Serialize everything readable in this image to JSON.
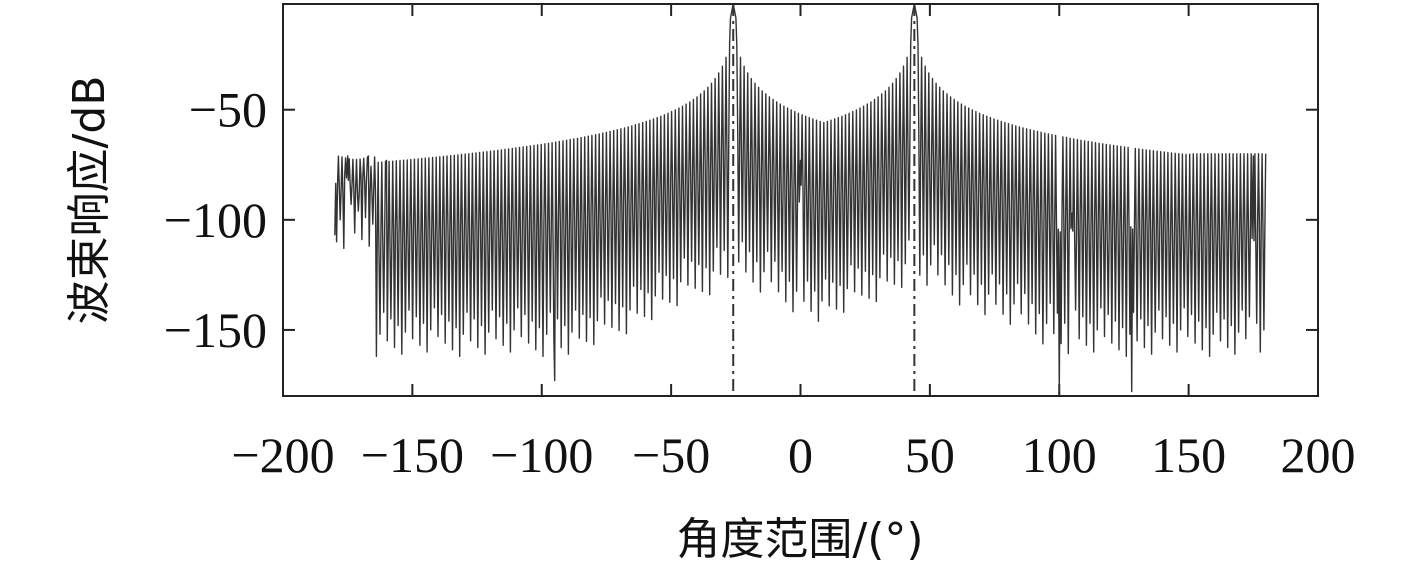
{
  "chart_data": {
    "type": "line",
    "title": "",
    "xlabel": "角度范围/(°)",
    "ylabel": "波束响应/dB",
    "xlim": [
      -200,
      200
    ],
    "ylim": [
      -180,
      -2
    ],
    "xticks": [
      -200,
      -150,
      -100,
      -50,
      0,
      50,
      100,
      150,
      200
    ],
    "yticks": [
      -50,
      -100,
      -150
    ],
    "x_tick_labels": [
      "−200",
      "−150",
      "−100",
      "−50",
      "0",
      "50",
      "100",
      "150",
      "200"
    ],
    "y_tick_labels": [
      "−50",
      "−100",
      "−150"
    ],
    "grid": false,
    "legend": "none",
    "x_range": [
      -180,
      180
    ],
    "main_lobes": [
      -26,
      44
    ],
    "marker_lines": [
      -26,
      44
    ],
    "notable_points": [
      {
        "x": -180,
        "y": -107
      },
      {
        "x": -175,
        "y": -71
      },
      {
        "x": -167,
        "y": -71
      },
      {
        "x": -163,
        "y": -104
      },
      {
        "x": -160,
        "y": -73
      },
      {
        "x": -100,
        "y": -97
      },
      {
        "x": -26,
        "y": -2
      },
      {
        "x": 0,
        "y": -73
      },
      {
        "x": 44,
        "y": -2
      },
      {
        "x": 105,
        "y": -97
      },
      {
        "x": 175,
        "y": -71
      },
      {
        "x": 180,
        "y": -83
      }
    ],
    "envelope_null_floor": -160,
    "deepest_nulls": [
      {
        "x": -95,
        "y": -173
      },
      {
        "x": 100,
        "y": -178
      },
      {
        "x": 128,
        "y": -178
      }
    ],
    "line_color": "#333333",
    "marker_line_color": "#333333"
  }
}
